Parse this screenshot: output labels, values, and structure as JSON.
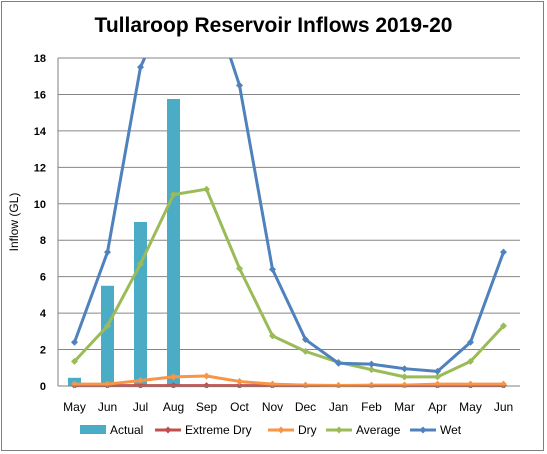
{
  "chart_data": {
    "type": "bar",
    "title": "Tullaroop Reservoir Inflows 2019-20",
    "ylabel": "Inflow (GL)",
    "xlabel": "",
    "ylim": [
      0,
      18
    ],
    "yticks": [
      0,
      2,
      4,
      6,
      8,
      10,
      12,
      14,
      16,
      18
    ],
    "grid": true,
    "legend_position": "bottom",
    "categories": [
      "May",
      "Jun",
      "Jul",
      "Aug",
      "Sep",
      "Oct",
      "Nov",
      "Dec",
      "Jan",
      "Feb",
      "Mar",
      "Apr",
      "May",
      "Jun"
    ],
    "series": [
      {
        "name": "Actual",
        "kind": "bar",
        "color": "#4bacc6",
        "values": [
          0.45,
          5.5,
          9.0,
          15.75,
          null,
          null,
          null,
          null,
          null,
          null,
          null,
          null,
          null,
          null
        ]
      },
      {
        "name": "Extreme Dry",
        "kind": "line",
        "color": "#c0504d",
        "values": [
          0.02,
          0.02,
          0.02,
          0.02,
          0.02,
          0.02,
          0.02,
          0.02,
          0.02,
          0.02,
          0.02,
          0.02,
          0.02,
          0.02
        ]
      },
      {
        "name": "Dry",
        "kind": "line",
        "color": "#f79646",
        "values": [
          0.1,
          0.1,
          0.3,
          0.5,
          0.55,
          0.25,
          0.1,
          0.05,
          0.03,
          0.05,
          0.05,
          0.1,
          0.1,
          0.1
        ]
      },
      {
        "name": "Average",
        "kind": "line",
        "color": "#9bbb59",
        "values": [
          1.35,
          3.3,
          6.7,
          10.5,
          10.8,
          6.45,
          2.75,
          1.9,
          1.3,
          0.9,
          0.5,
          0.5,
          1.35,
          3.3
        ]
      },
      {
        "name": "Wet",
        "kind": "line",
        "color": "#4f81bd",
        "values": [
          2.4,
          7.35,
          17.5,
          21.5,
          22.0,
          16.5,
          6.4,
          2.55,
          1.25,
          1.2,
          0.95,
          0.8,
          2.4,
          7.35
        ]
      }
    ]
  }
}
